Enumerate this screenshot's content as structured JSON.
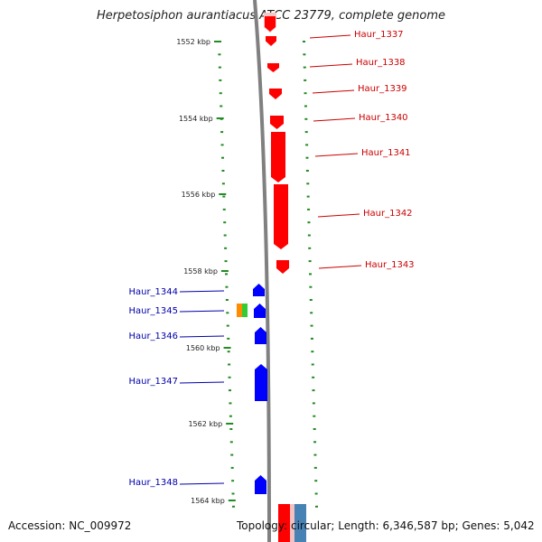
{
  "title": "Herpetosiphon aurantiacus ATCC 23779, complete genome",
  "accession": "Accession: NC_009972",
  "topology": "Topology: circular; Length: 6,346,587 bp; Genes: 5,042",
  "kbp_ticks": [
    {
      "label": "1552 kbp",
      "kbp": 1552
    },
    {
      "label": "1554 kbp",
      "kbp": 1554
    },
    {
      "label": "1556 kbp",
      "kbp": 1556
    },
    {
      "label": "1558 kbp",
      "kbp": 1558
    },
    {
      "label": "1560 kbp",
      "kbp": 1560
    },
    {
      "label": "1562 kbp",
      "kbp": 1562
    },
    {
      "label": "1564 kbp",
      "kbp": 1564
    }
  ],
  "genes_reverse": [
    {
      "name": "Haur_1337",
      "color": "#ff0000"
    },
    {
      "name": "Haur_1338",
      "color": "#ff0000"
    },
    {
      "name": "Haur_1339",
      "color": "#ff0000"
    },
    {
      "name": "Haur_1340",
      "color": "#ff0000"
    },
    {
      "name": "Haur_1341",
      "color": "#ff0000"
    },
    {
      "name": "Haur_1342",
      "color": "#ff0000"
    },
    {
      "name": "Haur_1343",
      "color": "#ff0000"
    }
  ],
  "genes_forward": [
    {
      "name": "Haur_1344",
      "color": "#0000ff"
    },
    {
      "name": "Haur_1345",
      "color": "#0000ff"
    },
    {
      "name": "Haur_1346",
      "color": "#0000ff"
    },
    {
      "name": "Haur_1347",
      "color": "#0000ff"
    },
    {
      "name": "Haur_1348",
      "color": "#0000ff"
    }
  ],
  "colors": {
    "reverse_label": "#cc0000",
    "forward_label": "#0000aa",
    "backbone": "#808080",
    "tick": "#228b22"
  }
}
